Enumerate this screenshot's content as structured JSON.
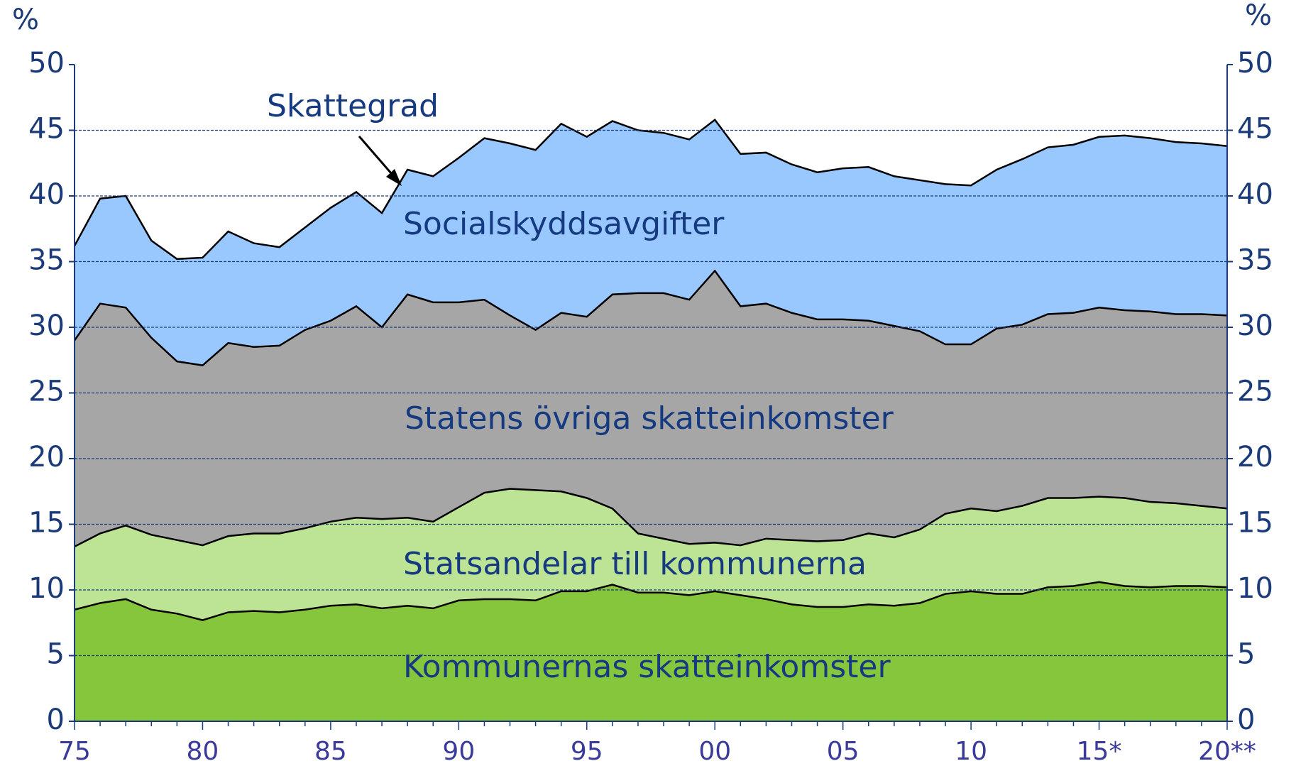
{
  "chart_data": {
    "type": "stacked_area",
    "y_unit": "%",
    "y2_unit": "%",
    "annotation": "Skattegrad",
    "categories": [
      "75",
      null,
      null,
      null,
      null,
      "80",
      null,
      null,
      null,
      null,
      "85",
      null,
      null,
      null,
      null,
      "90",
      null,
      null,
      null,
      null,
      "95",
      null,
      null,
      null,
      null,
      "00",
      null,
      null,
      null,
      null,
      "05",
      null,
      null,
      null,
      null,
      "10",
      null,
      null,
      null,
      null,
      "15*",
      null,
      null,
      null,
      null,
      "20**"
    ],
    "series": [
      {
        "name": "Kommunernas skatteinkomster",
        "color": "#86c63c",
        "values": [
          8.5,
          9.0,
          9.3,
          8.5,
          8.2,
          7.7,
          8.3,
          8.4,
          8.3,
          8.5,
          8.8,
          8.9,
          8.6,
          8.8,
          8.6,
          9.2,
          9.3,
          9.3,
          9.2,
          9.9,
          9.9,
          10.4,
          9.8,
          9.8,
          9.6,
          9.9,
          9.6,
          9.3,
          8.9,
          8.7,
          8.7,
          8.9,
          8.8,
          9.0,
          9.7,
          9.9,
          9.7,
          9.7,
          10.2,
          10.3,
          10.6,
          10.3,
          10.2,
          10.3,
          10.3,
          10.2
        ]
      },
      {
        "name": "Statsandelar till kommunerna",
        "color": "#bde394",
        "values": [
          4.8,
          5.3,
          5.6,
          5.7,
          5.6,
          5.7,
          5.8,
          5.9,
          6.0,
          6.2,
          6.4,
          6.6,
          6.8,
          6.7,
          6.6,
          7.1,
          8.1,
          8.4,
          8.4,
          7.6,
          7.1,
          5.8,
          4.5,
          4.1,
          3.9,
          3.7,
          3.8,
          4.6,
          4.9,
          5.0,
          5.1,
          5.4,
          5.2,
          5.6,
          6.1,
          6.3,
          6.3,
          6.7,
          6.8,
          6.7,
          6.5,
          6.7,
          6.5,
          6.3,
          6.1,
          6.0
        ]
      },
      {
        "name": "Statens övriga skatteinkomster",
        "color": "#a6a6a6",
        "values": [
          15.7,
          17.5,
          16.6,
          15.0,
          13.6,
          13.7,
          14.7,
          14.2,
          14.3,
          15.1,
          15.3,
          16.1,
          14.6,
          17.0,
          16.7,
          15.6,
          14.7,
          13.2,
          12.2,
          13.6,
          13.8,
          16.3,
          18.3,
          18.7,
          18.6,
          20.7,
          18.2,
          17.9,
          17.3,
          16.9,
          16.8,
          16.2,
          16.1,
          15.1,
          12.9,
          12.5,
          13.9,
          13.8,
          14.0,
          14.1,
          14.4,
          14.3,
          14.5,
          14.4,
          14.6,
          14.7
        ]
      },
      {
        "name": "Socialskyddsavgifter",
        "color": "#99c7ff",
        "values": [
          7.2,
          8.0,
          8.5,
          7.4,
          7.8,
          8.2,
          8.5,
          7.9,
          7.5,
          7.8,
          8.6,
          8.7,
          8.7,
          9.5,
          9.6,
          11.0,
          12.3,
          13.1,
          13.7,
          14.4,
          13.7,
          13.2,
          12.4,
          12.2,
          12.2,
          11.5,
          11.6,
          11.5,
          11.3,
          11.2,
          11.5,
          11.7,
          11.4,
          11.5,
          12.2,
          12.1,
          12.1,
          12.6,
          12.7,
          12.8,
          13.0,
          13.3,
          13.2,
          13.1,
          13.0,
          12.9
        ]
      }
    ],
    "ylim": [
      0,
      50
    ],
    "yticks": [
      0,
      5,
      10,
      15,
      20,
      25,
      30,
      35,
      40,
      45,
      50
    ],
    "y2lim": [
      0,
      50
    ],
    "y2ticks": [
      0,
      5,
      10,
      15,
      20,
      25,
      30,
      35,
      40,
      45,
      50
    ],
    "grid": true
  }
}
